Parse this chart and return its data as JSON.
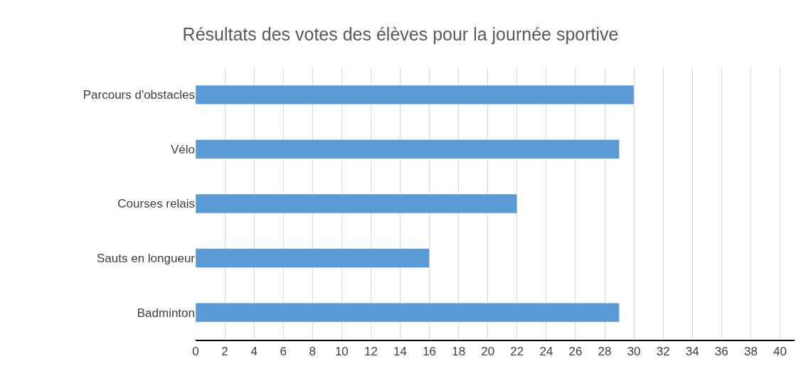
{
  "chart_data": {
    "type": "bar",
    "orientation": "horizontal",
    "title": "Résultats des votes des élèves pour la journée sportive",
    "categories": [
      "Parcours d'obstacles",
      "Vélo",
      "Courses relais",
      "Sauts en longueur",
      "Badminton"
    ],
    "values": [
      30,
      29,
      22,
      16,
      29
    ],
    "color": "#5b9bd5",
    "xlim": [
      0,
      41
    ],
    "xticks": [
      0,
      2,
      4,
      6,
      8,
      10,
      12,
      14,
      16,
      18,
      20,
      22,
      24,
      26,
      28,
      30,
      32,
      34,
      36,
      38,
      40
    ],
    "grid": "x"
  }
}
